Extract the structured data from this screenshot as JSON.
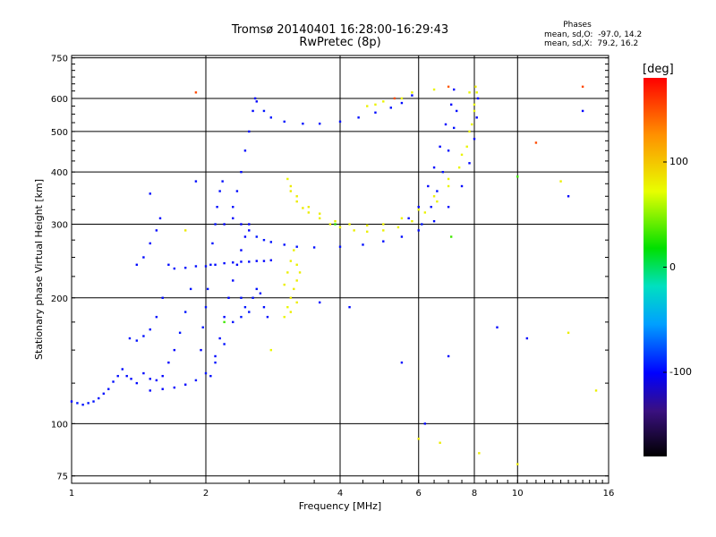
{
  "header": {
    "title_line1": "Tromsø 20140401 16:28:00-16:29:43",
    "title_line2": "RwPretec (8p)",
    "phases_heading": "Phases",
    "phases_line1": "mean, sd,O:  -97.0, 14.2",
    "phases_line2": "mean, sd,X:  79.2, 16.2"
  },
  "colorbar": {
    "unit": "[deg]",
    "ticks": [
      "100",
      "0",
      "-100"
    ],
    "tick_values": [
      100,
      0,
      -100
    ],
    "range": [
      -180,
      180
    ]
  },
  "chart_data": {
    "type": "scatter",
    "title": "Tromsø 20140401 16:28:00-16:29:43",
    "subtitle": "RwPretec (8p)",
    "xlabel": "Frequency [MHz]",
    "ylabel": "Stationary phase Virtual Height [km]",
    "x_scale": "log",
    "y_scale": "log",
    "xlim": [
      1,
      16
    ],
    "ylim": [
      72,
      760
    ],
    "x_ticks": [
      1,
      2,
      4,
      6,
      8,
      10,
      16
    ],
    "x_tick_labels": [
      "1",
      "2",
      "4",
      "6",
      "8",
      "10",
      "16"
    ],
    "y_ticks": [
      75,
      100,
      200,
      300,
      400,
      500,
      600,
      750
    ],
    "y_tick_labels": [
      "75",
      "100",
      "200",
      "300",
      "400",
      "500",
      "600",
      "750"
    ],
    "grid": true,
    "colors": {
      "o_mode": "#1e3cff",
      "x_mode": "#d8f000"
    },
    "series": [
      {
        "phase_deg": -97,
        "points": [
          [
            1.0,
            113
          ],
          [
            1.03,
            112
          ],
          [
            1.06,
            111
          ],
          [
            1.09,
            112
          ],
          [
            1.12,
            113
          ],
          [
            1.15,
            115
          ],
          [
            1.18,
            118
          ],
          [
            1.21,
            121
          ],
          [
            1.24,
            126
          ],
          [
            1.27,
            130
          ],
          [
            1.3,
            135
          ],
          [
            1.33,
            130
          ],
          [
            1.36,
            128
          ],
          [
            1.4,
            125
          ],
          [
            1.45,
            132
          ],
          [
            1.5,
            128
          ],
          [
            1.55,
            127
          ],
          [
            1.6,
            130
          ],
          [
            1.65,
            140
          ],
          [
            1.7,
            150
          ],
          [
            1.75,
            165
          ],
          [
            1.8,
            185
          ],
          [
            1.85,
            210
          ],
          [
            1.35,
            160
          ],
          [
            1.4,
            158
          ],
          [
            1.45,
            162
          ],
          [
            1.5,
            168
          ],
          [
            1.55,
            180
          ],
          [
            1.6,
            200
          ],
          [
            1.65,
            240
          ],
          [
            1.4,
            240
          ],
          [
            1.45,
            250
          ],
          [
            1.5,
            270
          ],
          [
            1.55,
            290
          ],
          [
            1.58,
            310
          ],
          [
            1.5,
            120
          ],
          [
            1.6,
            121
          ],
          [
            1.7,
            122
          ],
          [
            1.8,
            124
          ],
          [
            1.9,
            127
          ],
          [
            2.0,
            132
          ],
          [
            2.1,
            140
          ],
          [
            2.2,
            155
          ],
          [
            2.3,
            175
          ],
          [
            2.4,
            200
          ],
          [
            1.7,
            235
          ],
          [
            1.8,
            236
          ],
          [
            1.9,
            238
          ],
          [
            2.0,
            238
          ],
          [
            2.1,
            240
          ],
          [
            2.2,
            242
          ],
          [
            2.3,
            243
          ],
          [
            2.4,
            244
          ],
          [
            2.5,
            244
          ],
          [
            2.6,
            245
          ],
          [
            2.7,
            245
          ],
          [
            2.8,
            246
          ],
          [
            1.95,
            150
          ],
          [
            1.97,
            170
          ],
          [
            2.0,
            190
          ],
          [
            2.02,
            210
          ],
          [
            2.05,
            240
          ],
          [
            2.07,
            270
          ],
          [
            2.1,
            300
          ],
          [
            2.12,
            330
          ],
          [
            2.15,
            360
          ],
          [
            2.18,
            380
          ],
          [
            2.05,
            130
          ],
          [
            2.1,
            145
          ],
          [
            2.15,
            160
          ],
          [
            2.2,
            180
          ],
          [
            2.25,
            200
          ],
          [
            2.3,
            220
          ],
          [
            2.35,
            240
          ],
          [
            2.4,
            260
          ],
          [
            2.45,
            280
          ],
          [
            2.5,
            300
          ],
          [
            2.4,
            180
          ],
          [
            2.45,
            190
          ],
          [
            2.5,
            185
          ],
          [
            2.55,
            200
          ],
          [
            2.6,
            210
          ],
          [
            2.65,
            205
          ],
          [
            2.7,
            190
          ],
          [
            2.75,
            180
          ],
          [
            2.3,
            330
          ],
          [
            2.35,
            360
          ],
          [
            2.4,
            400
          ],
          [
            2.45,
            450
          ],
          [
            2.5,
            500
          ],
          [
            2.55,
            560
          ],
          [
            2.58,
            600
          ],
          [
            2.2,
            300
          ],
          [
            2.3,
            310
          ],
          [
            2.4,
            300
          ],
          [
            2.5,
            290
          ],
          [
            2.6,
            280
          ],
          [
            2.7,
            275
          ],
          [
            2.8,
            272
          ],
          [
            3.0,
            268
          ],
          [
            3.2,
            265
          ],
          [
            3.5,
            264
          ],
          [
            4.0,
            265
          ],
          [
            4.5,
            268
          ],
          [
            5.0,
            273
          ],
          [
            5.5,
            280
          ],
          [
            6.0,
            290
          ],
          [
            6.5,
            305
          ],
          [
            7.0,
            330
          ],
          [
            7.5,
            370
          ],
          [
            7.8,
            420
          ],
          [
            8.0,
            480
          ],
          [
            8.1,
            540
          ],
          [
            8.15,
            600
          ],
          [
            2.6,
            590
          ],
          [
            2.7,
            560
          ],
          [
            2.8,
            540
          ],
          [
            3.0,
            528
          ],
          [
            3.3,
            522
          ],
          [
            3.6,
            522
          ],
          [
            4.0,
            528
          ],
          [
            4.4,
            540
          ],
          [
            4.8,
            555
          ],
          [
            5.2,
            570
          ],
          [
            5.5,
            585
          ],
          [
            5.8,
            610
          ],
          [
            5.7,
            310
          ],
          [
            6.0,
            330
          ],
          [
            6.3,
            370
          ],
          [
            6.5,
            410
          ],
          [
            6.7,
            460
          ],
          [
            6.9,
            520
          ],
          [
            7.1,
            580
          ],
          [
            7.2,
            630
          ],
          [
            6.1,
            300
          ],
          [
            6.4,
            330
          ],
          [
            6.6,
            360
          ],
          [
            6.8,
            400
          ],
          [
            7.0,
            450
          ],
          [
            7.2,
            510
          ],
          [
            7.3,
            560
          ],
          [
            1.5,
            355
          ],
          [
            1.9,
            380
          ],
          [
            3.6,
            195
          ],
          [
            4.2,
            190
          ],
          [
            5.5,
            140
          ],
          [
            6.2,
            100
          ],
          [
            7.0,
            145
          ],
          [
            9.0,
            170
          ],
          [
            10.5,
            160
          ],
          [
            13.0,
            350
          ],
          [
            14.0,
            560
          ]
        ]
      },
      {
        "phase_deg": 79,
        "points": [
          [
            3.05,
            385
          ],
          [
            3.1,
            360
          ],
          [
            3.2,
            340
          ],
          [
            3.3,
            328
          ],
          [
            3.4,
            320
          ],
          [
            3.6,
            310
          ],
          [
            3.8,
            300
          ],
          [
            4.0,
            295
          ],
          [
            4.3,
            290
          ],
          [
            4.6,
            288
          ],
          [
            5.0,
            290
          ],
          [
            5.4,
            295
          ],
          [
            5.8,
            305
          ],
          [
            6.2,
            320
          ],
          [
            6.6,
            340
          ],
          [
            7.0,
            370
          ],
          [
            7.4,
            410
          ],
          [
            7.7,
            460
          ],
          [
            7.9,
            520
          ],
          [
            8.0,
            580
          ],
          [
            8.05,
            640
          ],
          [
            3.1,
            370
          ],
          [
            3.2,
            350
          ],
          [
            3.4,
            330
          ],
          [
            3.6,
            318
          ],
          [
            3.9,
            305
          ],
          [
            4.2,
            300
          ],
          [
            4.6,
            298
          ],
          [
            5.0,
            300
          ],
          [
            5.5,
            310
          ],
          [
            6.0,
            325
          ],
          [
            6.5,
            350
          ],
          [
            7.0,
            385
          ],
          [
            7.5,
            440
          ],
          [
            7.8,
            500
          ],
          [
            8.0,
            560
          ],
          [
            8.1,
            620
          ],
          [
            3.0,
            180
          ],
          [
            3.05,
            190
          ],
          [
            3.1,
            200
          ],
          [
            3.15,
            210
          ],
          [
            3.2,
            220
          ],
          [
            3.25,
            230
          ],
          [
            3.1,
            185
          ],
          [
            3.2,
            195
          ],
          [
            3.0,
            215
          ],
          [
            3.05,
            230
          ],
          [
            3.1,
            245
          ],
          [
            3.15,
            260
          ],
          [
            3.2,
            240
          ],
          [
            4.6,
            575
          ],
          [
            4.8,
            580
          ],
          [
            5.0,
            590
          ],
          [
            5.5,
            600
          ],
          [
            5.8,
            620
          ],
          [
            6.5,
            630
          ],
          [
            7.8,
            620
          ],
          [
            2.8,
            150
          ],
          [
            1.8,
            290
          ],
          [
            6.0,
            92
          ],
          [
            6.7,
            90
          ],
          [
            8.2,
            85
          ],
          [
            10.0,
            80
          ],
          [
            13.0,
            165
          ],
          [
            15.0,
            120
          ],
          [
            12.5,
            380
          ]
        ]
      },
      {
        "phase_deg": 150,
        "points": [
          [
            7.0,
            640
          ],
          [
            14.0,
            640
          ],
          [
            1.9,
            620
          ],
          [
            11.0,
            470
          ],
          [
            5.3,
            600
          ]
        ]
      },
      {
        "phase_deg": 30,
        "points": [
          [
            3.9,
            300
          ],
          [
            2.2,
            175
          ],
          [
            10.0,
            390
          ],
          [
            7.1,
            280
          ]
        ]
      }
    ]
  }
}
